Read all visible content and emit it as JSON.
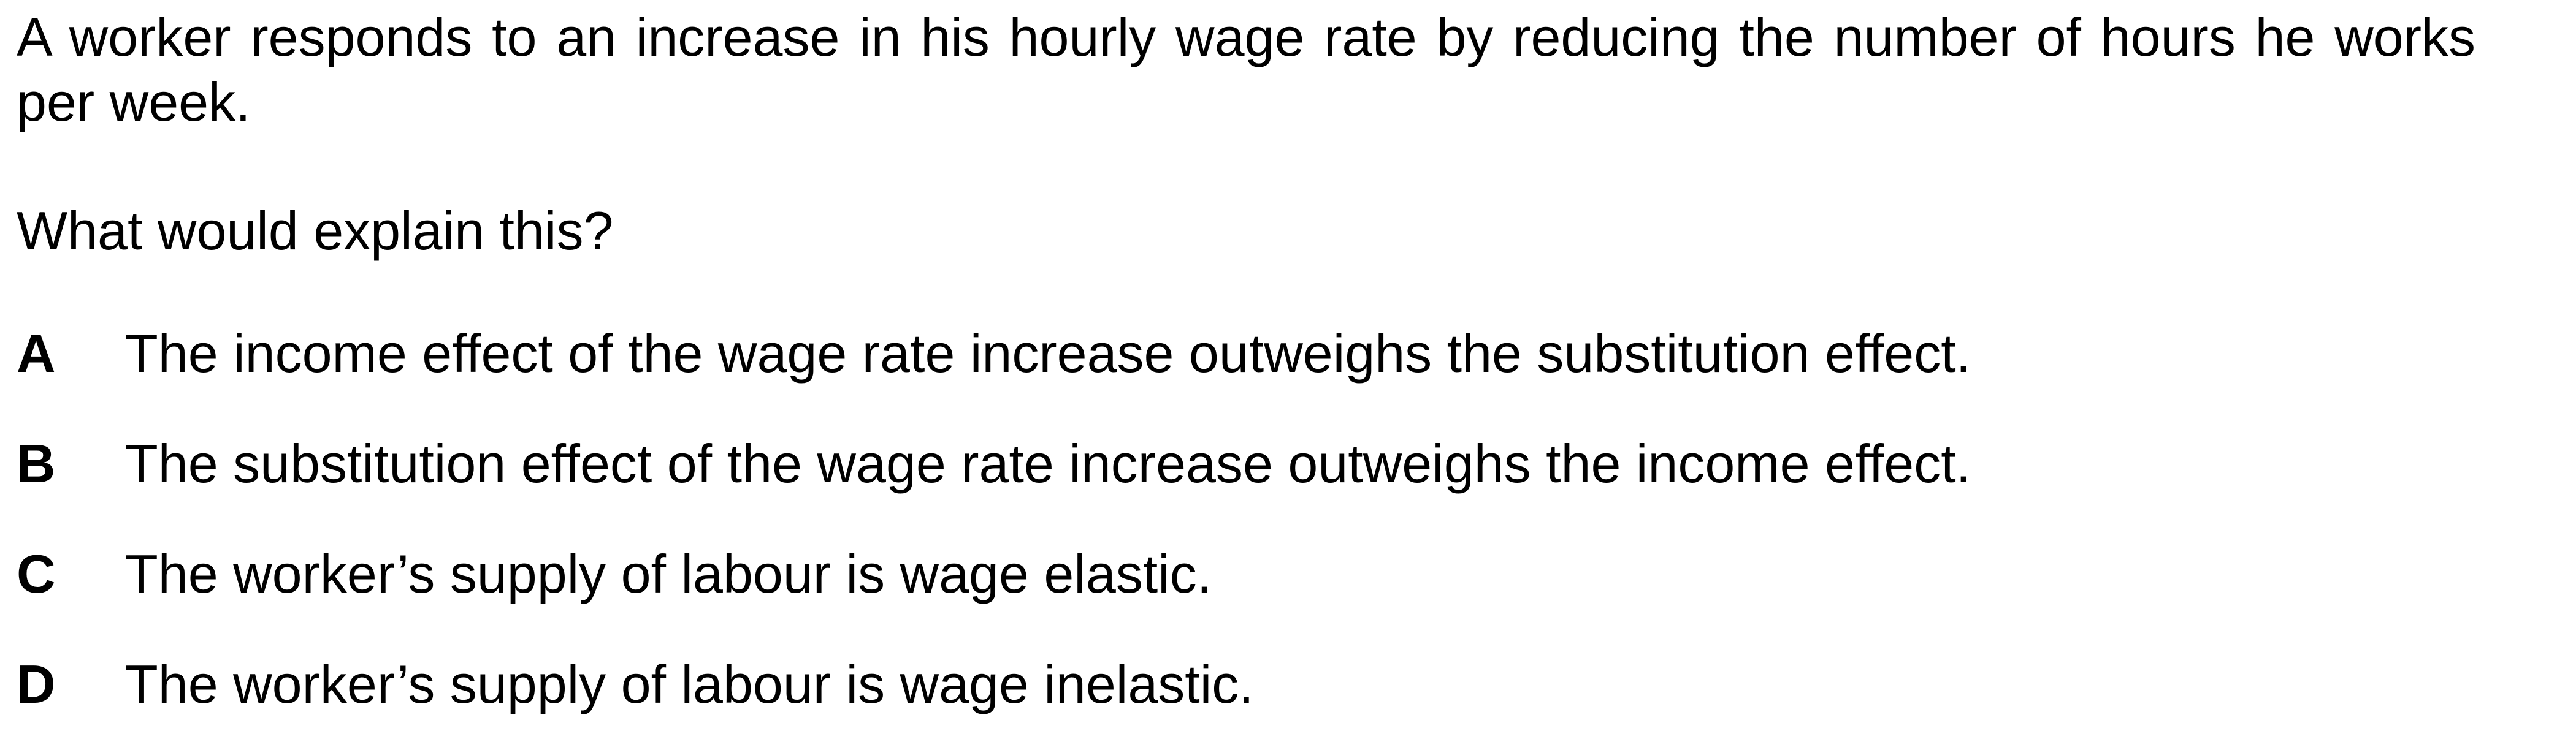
{
  "question": {
    "stem": "A worker responds to an increase in his hourly wage rate by reducing the number of hours he works per week.",
    "prompt": "What would explain this?"
  },
  "options": [
    {
      "letter": "A",
      "text": "The income effect of the wage rate increase outweighs the substitution effect."
    },
    {
      "letter": "B",
      "text": "The substitution effect of the wage rate increase outweighs the income effect."
    },
    {
      "letter": "C",
      "text": "The worker’s supply of labour is wage elastic."
    },
    {
      "letter": "D",
      "text": "The worker’s supply of labour is wage inelastic."
    }
  ]
}
